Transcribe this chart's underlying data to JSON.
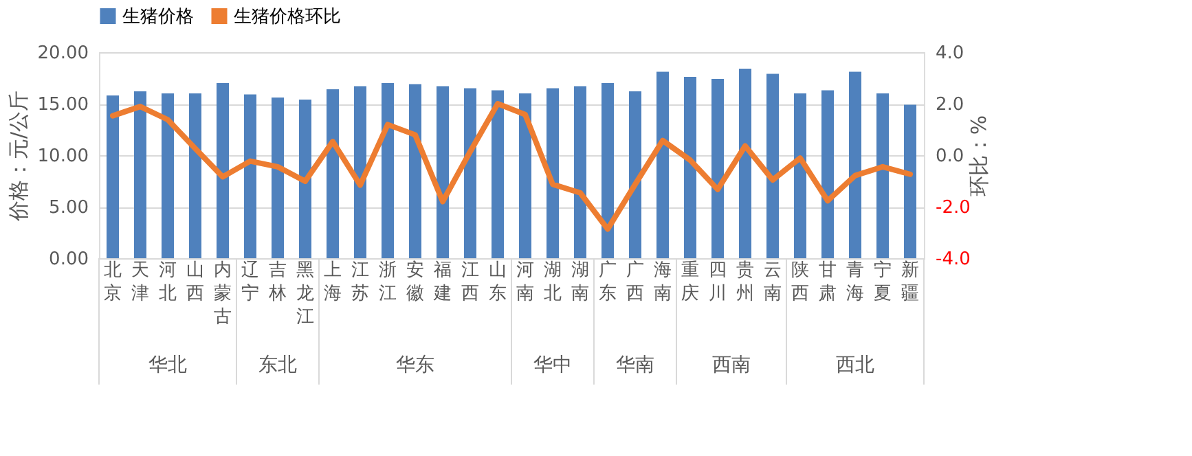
{
  "chart_data": {
    "type": "bar",
    "categories": [
      "北京",
      "天津",
      "河北",
      "山西",
      "内蒙古",
      "辽宁",
      "吉林",
      "黑龙江",
      "上海",
      "江苏",
      "浙江",
      "安徽",
      "福建",
      "江西",
      "山东",
      "河南",
      "湖北",
      "湖南",
      "广东",
      "广西",
      "海南",
      "重庆",
      "四川",
      "贵州",
      "云南",
      "陕西",
      "甘肃",
      "青海",
      "宁夏",
      "新疆"
    ],
    "series": [
      {
        "name": "生猪价格",
        "color": "#4f81bd",
        "values": [
          15.8,
          16.2,
          16.0,
          16.0,
          17.0,
          15.9,
          15.6,
          15.4,
          16.4,
          16.7,
          17.0,
          16.9,
          16.7,
          16.5,
          16.3,
          16.0,
          16.5,
          16.7,
          17.0,
          16.2,
          18.1,
          17.6,
          17.4,
          18.4,
          17.9,
          16.0,
          16.3,
          18.1,
          16.0,
          14.9
        ]
      },
      {
        "name": "生猪价格环比",
        "type": "line",
        "axis": "y2",
        "color": "#ed7d31",
        "marker": "none",
        "line_style": "solid",
        "values": [
          1.53,
          1.89,
          1.38,
          0.26,
          -0.84,
          -0.23,
          -0.45,
          -1.01,
          0.53,
          -1.16,
          1.19,
          0.79,
          -1.8,
          0.14,
          2.0,
          1.58,
          -1.13,
          -1.46,
          -2.87,
          -1.13,
          0.57,
          -0.19,
          -1.33,
          0.36,
          -0.96,
          -0.11,
          -1.77,
          -0.79,
          -0.45,
          -0.74
        ]
      }
    ],
    "ylabel": "价格：元/公斤",
    "y2label": "环比：%",
    "ylim": [
      0,
      20
    ],
    "yticks": [
      {
        "value": 0,
        "label": "0.00"
      },
      {
        "value": 5,
        "label": "5.00"
      },
      {
        "value": 10,
        "label": "10.00"
      },
      {
        "value": 15,
        "label": "15.00"
      },
      {
        "value": 20,
        "label": "20.00"
      }
    ],
    "y2lim": [
      -4,
      4
    ],
    "y2ticks": [
      {
        "value": -4,
        "label": "-4.0"
      },
      {
        "value": -2,
        "label": "-2.0"
      },
      {
        "value": 0,
        "label": "0.0"
      },
      {
        "value": 2,
        "label": "2.0"
      },
      {
        "value": 4,
        "label": "4.0"
      }
    ],
    "annotations": [
      "华北",
      "东北",
      "华东",
      "华中",
      "华南",
      "西南",
      "西北"
    ],
    "grid": "y",
    "legend": "top"
  }
}
